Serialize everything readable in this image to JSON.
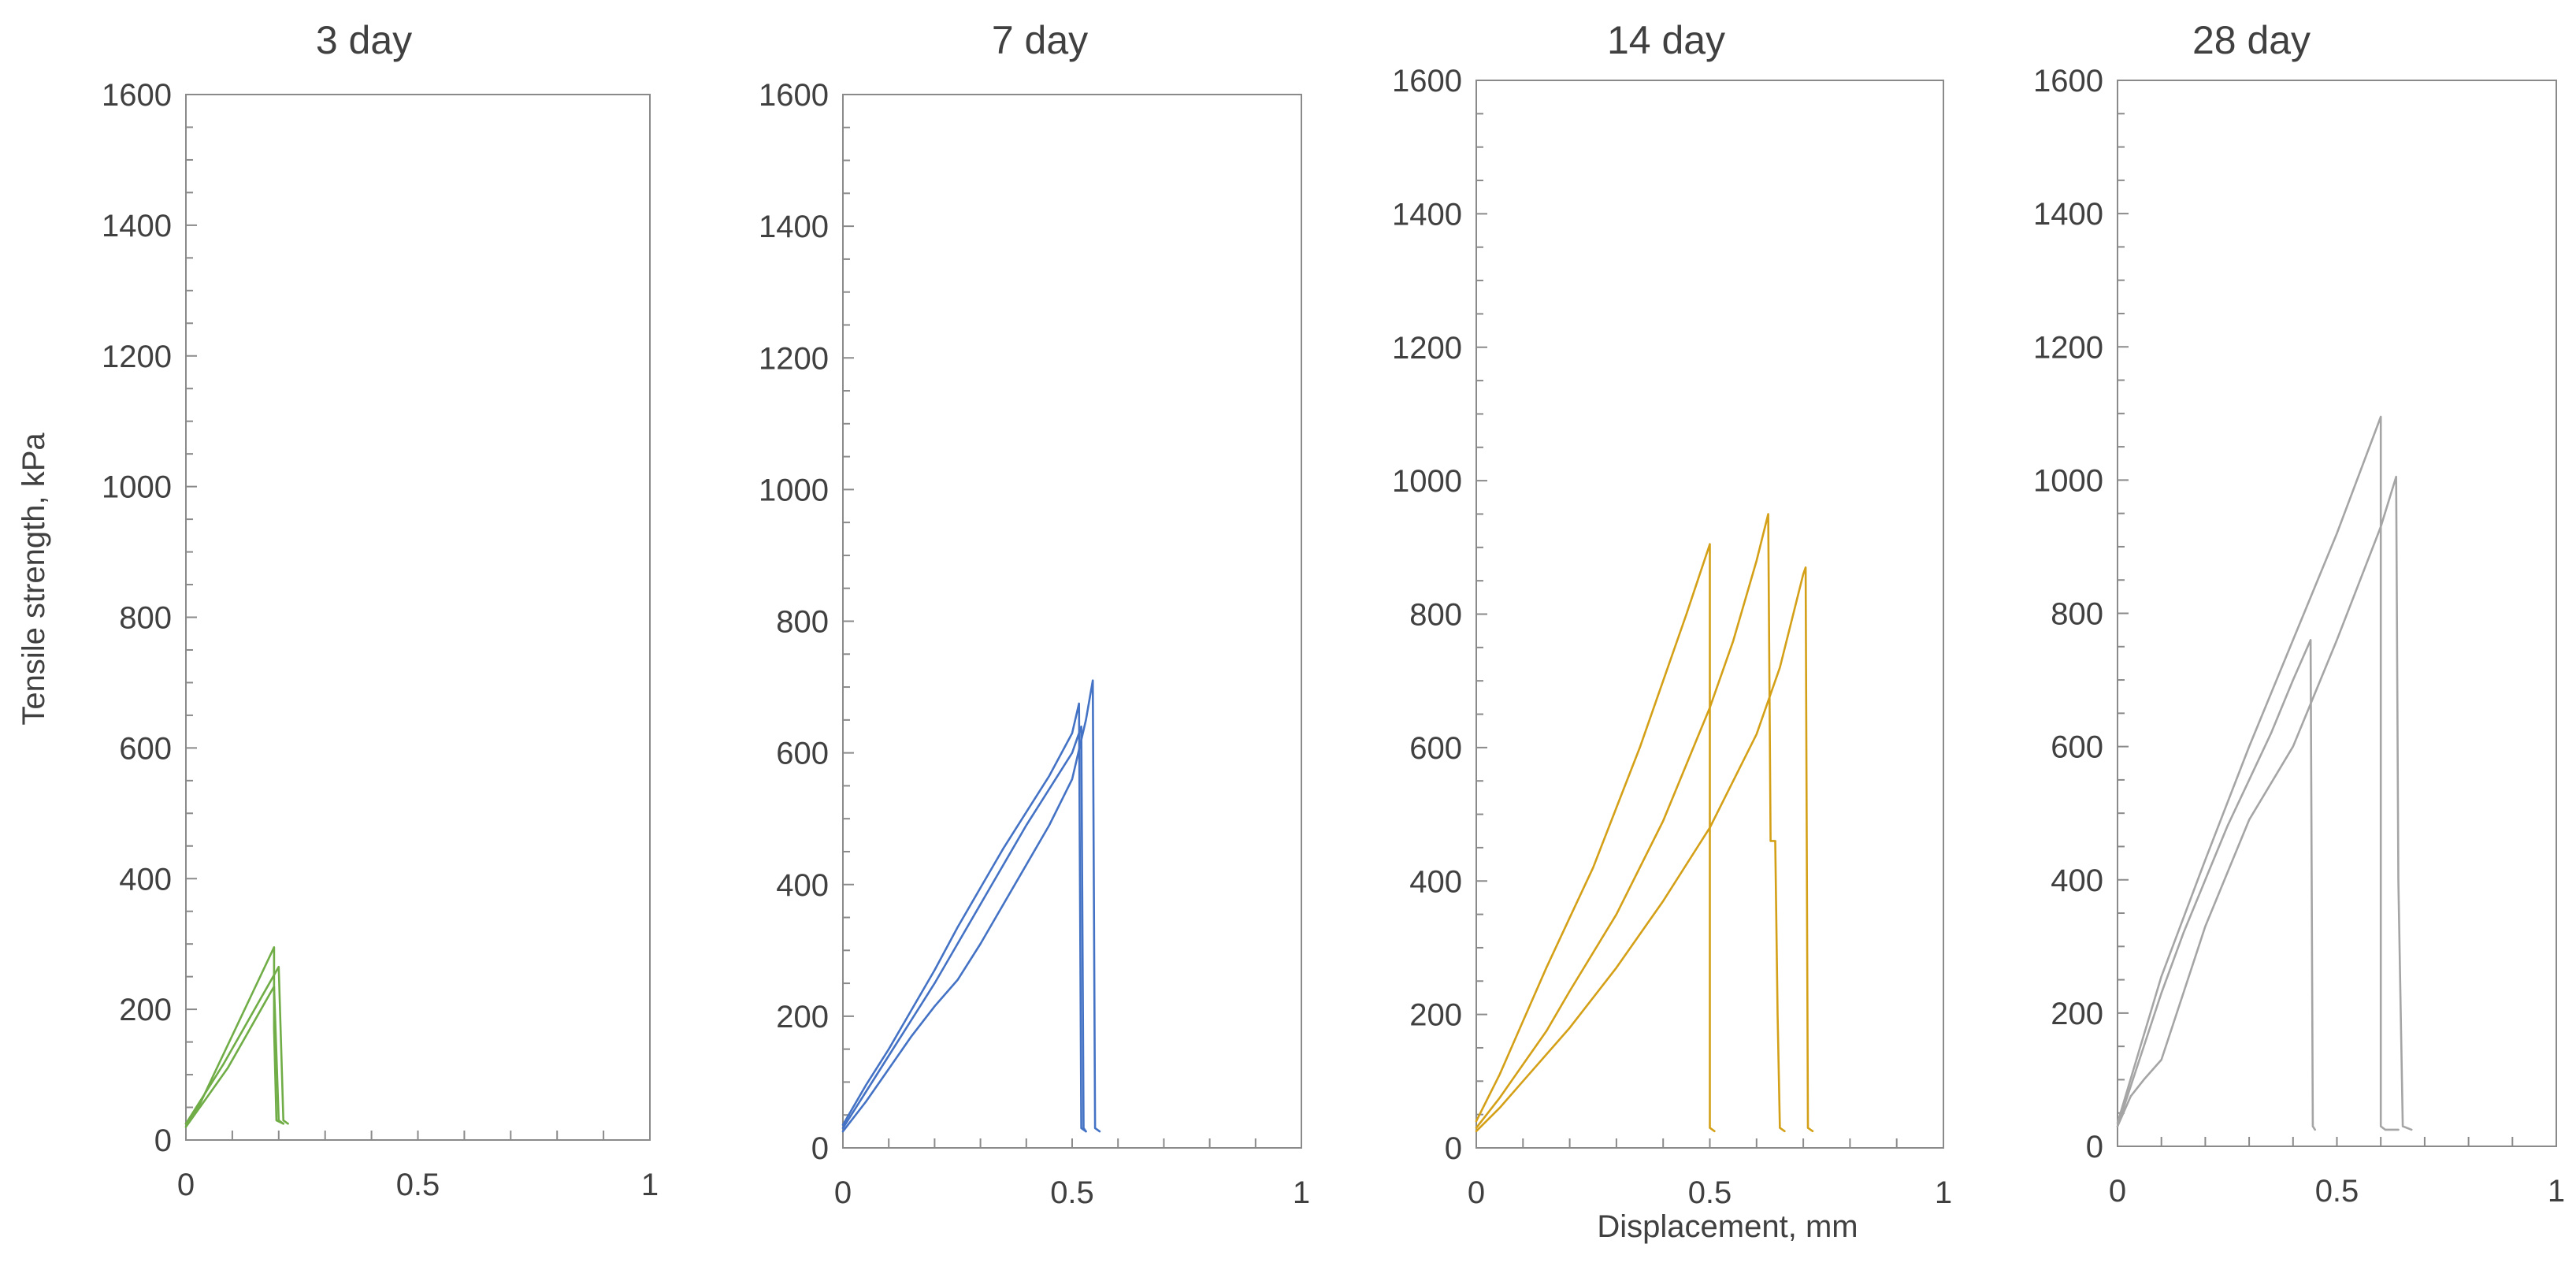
{
  "figure": {
    "ylabel": "Tensile strength, kPa",
    "xlabel": "Displacement, mm"
  },
  "chart_data": [
    {
      "type": "line",
      "title": "3 day",
      "xlim": [
        0,
        1
      ],
      "ylim": [
        0,
        1600
      ],
      "xticks": [
        "0",
        "0.5",
        "1"
      ],
      "yticks": [
        "0",
        "200",
        "400",
        "600",
        "800",
        "1000",
        "1200",
        "1400",
        "1600"
      ],
      "grid": false,
      "color": "#70ad47",
      "series": [
        {
          "x": [
            0,
            0.03,
            0.06,
            0.1,
            0.14,
            0.19,
            0.19,
            0.195,
            0.21
          ],
          "y": [
            25,
            55,
            100,
            160,
            220,
            295,
            170,
            30,
            25
          ]
        },
        {
          "x": [
            0,
            0.04,
            0.08,
            0.12,
            0.16,
            0.2,
            0.205,
            0.21,
            0.22
          ],
          "y": [
            25,
            70,
            115,
            165,
            215,
            265,
            150,
            30,
            25
          ]
        },
        {
          "x": [
            0,
            0.04,
            0.09,
            0.13,
            0.17,
            0.19,
            0.2,
            0.21
          ],
          "y": [
            20,
            60,
            110,
            160,
            210,
            235,
            30,
            25
          ]
        }
      ]
    },
    {
      "type": "line",
      "title": "7 day",
      "xlim": [
        0,
        1
      ],
      "ylim": [
        0,
        1600
      ],
      "xticks": [
        "0",
        "0.5",
        "1"
      ],
      "yticks": [
        "0",
        "200",
        "400",
        "600",
        "800",
        "1000",
        "1200",
        "1400",
        "1600"
      ],
      "grid": false,
      "color": "#4472c4",
      "series": [
        {
          "x": [
            0,
            0.05,
            0.1,
            0.15,
            0.2,
            0.25,
            0.3,
            0.35,
            0.4,
            0.45,
            0.5,
            0.52,
            0.525,
            0.53
          ],
          "y": [
            30,
            85,
            140,
            195,
            250,
            310,
            370,
            430,
            490,
            545,
            600,
            640,
            30,
            25
          ]
        },
        {
          "x": [
            0,
            0.05,
            0.1,
            0.15,
            0.2,
            0.25,
            0.3,
            0.35,
            0.4,
            0.45,
            0.5,
            0.515,
            0.52,
            0.53
          ],
          "y": [
            35,
            95,
            150,
            210,
            270,
            335,
            395,
            455,
            510,
            565,
            630,
            675,
            30,
            25
          ]
        },
        {
          "x": [
            0,
            0.05,
            0.1,
            0.15,
            0.2,
            0.25,
            0.3,
            0.35,
            0.4,
            0.45,
            0.5,
            0.53,
            0.545,
            0.55,
            0.56
          ],
          "y": [
            25,
            70,
            120,
            170,
            215,
            255,
            310,
            370,
            430,
            490,
            560,
            650,
            710,
            30,
            25
          ]
        }
      ]
    },
    {
      "type": "line",
      "title": "14 day",
      "xlim": [
        0,
        1
      ],
      "ylim": [
        0,
        1600
      ],
      "xticks": [
        "0",
        "0.5",
        "1"
      ],
      "yticks": [
        "0",
        "200",
        "400",
        "600",
        "800",
        "1000",
        "1200",
        "1400",
        "1600"
      ],
      "grid": false,
      "color": "#d4a017",
      "series": [
        {
          "x": [
            0,
            0.05,
            0.1,
            0.15,
            0.2,
            0.25,
            0.3,
            0.35,
            0.4,
            0.45,
            0.5,
            0.5,
            0.5,
            0.51
          ],
          "y": [
            40,
            110,
            190,
            270,
            345,
            420,
            510,
            600,
            700,
            800,
            905,
            600,
            30,
            25
          ]
        },
        {
          "x": [
            0,
            0.05,
            0.1,
            0.15,
            0.2,
            0.3,
            0.4,
            0.5,
            0.55,
            0.6,
            0.625,
            0.63,
            0.64,
            0.645,
            0.65,
            0.66
          ],
          "y": [
            30,
            75,
            125,
            175,
            235,
            350,
            490,
            660,
            760,
            880,
            950,
            460,
            460,
            200,
            30,
            25
          ]
        },
        {
          "x": [
            0,
            0.05,
            0.1,
            0.2,
            0.3,
            0.4,
            0.5,
            0.6,
            0.65,
            0.7,
            0.705,
            0.71,
            0.72
          ],
          "y": [
            25,
            60,
            100,
            180,
            270,
            370,
            480,
            620,
            720,
            860,
            870,
            30,
            25
          ]
        }
      ]
    },
    {
      "type": "line",
      "title": "28 day",
      "xlim": [
        0,
        1
      ],
      "ylim": [
        0,
        1600
      ],
      "xticks": [
        "0",
        "0.5",
        "1"
      ],
      "yticks": [
        "0",
        "200",
        "400",
        "600",
        "800",
        "1000",
        "1200",
        "1400",
        "1600"
      ],
      "grid": false,
      "color": "#a5a5a5",
      "series": [
        {
          "x": [
            0,
            0.05,
            0.1,
            0.15,
            0.2,
            0.25,
            0.3,
            0.35,
            0.4,
            0.44,
            0.445,
            0.45
          ],
          "y": [
            30,
            130,
            230,
            320,
            400,
            480,
            550,
            620,
            700,
            760,
            30,
            25
          ]
        },
        {
          "x": [
            0,
            0.05,
            0.1,
            0.2,
            0.3,
            0.4,
            0.5,
            0.6,
            0.6,
            0.61,
            0.64
          ],
          "y": [
            35,
            145,
            255,
            430,
            600,
            760,
            920,
            1095,
            30,
            25,
            25
          ]
        },
        {
          "x": [
            0,
            0.03,
            0.06,
            0.1,
            0.15,
            0.2,
            0.3,
            0.4,
            0.5,
            0.6,
            0.635,
            0.64,
            0.65,
            0.67
          ],
          "y": [
            30,
            75,
            100,
            130,
            230,
            330,
            490,
            600,
            760,
            930,
            1005,
            400,
            30,
            25
          ]
        }
      ]
    }
  ]
}
